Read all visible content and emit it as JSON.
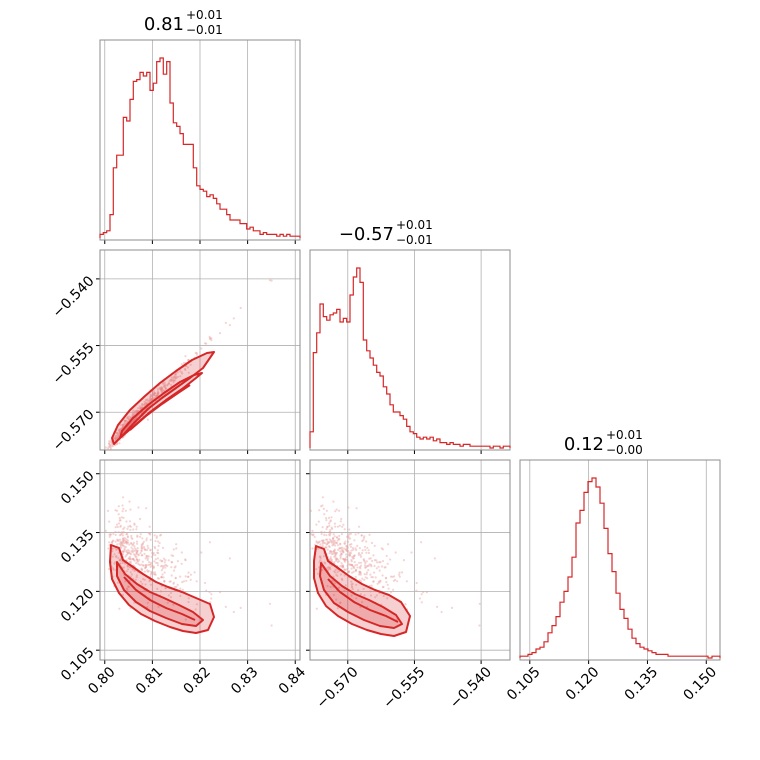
{
  "chart_data": {
    "type": "corner",
    "color": "#d62728",
    "params": [
      {
        "median": 0.81,
        "plus": 0.01,
        "minus": 0.01,
        "range": [
          0.799,
          0.841
        ],
        "ticks": [
          "0.80",
          "0.81",
          "0.82",
          "0.83",
          "0.84"
        ],
        "tick_values": [
          0.8,
          0.81,
          0.82,
          0.83,
          0.84
        ],
        "title_main": "0.81",
        "title_sup": "+0.01",
        "title_sub": "−0.01"
      },
      {
        "median": -0.57,
        "plus": 0.01,
        "minus": 0.01,
        "range": [
          -0.5785,
          -0.5335
        ],
        "ticks": [
          "−0.570",
          "−0.555",
          "−0.540"
        ],
        "tick_values": [
          -0.57,
          -0.555,
          -0.54
        ],
        "title_main": "−0.57",
        "title_sup": "+0.01",
        "title_sub": "−0.01"
      },
      {
        "median": 0.12,
        "plus": 0.01,
        "minus": 0.0,
        "range": [
          0.1025,
          0.1535
        ],
        "ticks": [
          "0.105",
          "0.120",
          "0.135",
          "0.150"
        ],
        "tick_values": [
          0.105,
          0.12,
          0.135,
          0.15
        ],
        "title_main": "0.12",
        "title_sup": "+0.01",
        "title_sub": "−0.00"
      }
    ],
    "hist1": [
      0.02,
      0.03,
      0.04,
      0.13,
      0.39,
      0.46,
      0.46,
      0.67,
      0.65,
      0.77,
      0.87,
      0.88,
      0.92,
      0.9,
      0.92,
      0.82,
      0.86,
      0.98,
      1.0,
      0.91,
      0.98,
      0.75,
      0.64,
      0.62,
      0.58,
      0.52,
      0.52,
      0.52,
      0.39,
      0.29,
      0.27,
      0.26,
      0.23,
      0.24,
      0.22,
      0.19,
      0.16,
      0.16,
      0.13,
      0.1,
      0.1,
      0.1,
      0.08,
      0.08,
      0.05,
      0.06,
      0.04,
      0.04,
      0.02,
      0.03,
      0.02,
      0.02,
      0.02,
      0.01,
      0.02,
      0.01,
      0.02,
      0.01,
      0.01,
      0.01
    ],
    "hist2": [
      0.09,
      0.53,
      0.64,
      0.8,
      0.73,
      0.71,
      0.74,
      0.75,
      0.77,
      0.7,
      0.72,
      0.7,
      0.85,
      0.95,
      1.0,
      0.92,
      0.6,
      0.54,
      0.5,
      0.46,
      0.42,
      0.4,
      0.34,
      0.3,
      0.24,
      0.2,
      0.2,
      0.18,
      0.16,
      0.12,
      0.09,
      0.08,
      0.06,
      0.05,
      0.06,
      0.05,
      0.06,
      0.04,
      0.05,
      0.03,
      0.03,
      0.02,
      0.03,
      0.02,
      0.02,
      0.01,
      0.02,
      0.02,
      0.01,
      0.01,
      0.01,
      0.01,
      0.01,
      0.01,
      0.0,
      0.01,
      0.01,
      0.0,
      0.01,
      0.01
    ],
    "hist3": [
      0.01,
      0.01,
      0.02,
      0.03,
      0.05,
      0.06,
      0.09,
      0.14,
      0.18,
      0.23,
      0.31,
      0.37,
      0.45,
      0.56,
      0.75,
      0.82,
      0.92,
      0.98,
      1.0,
      0.95,
      0.86,
      0.72,
      0.58,
      0.48,
      0.36,
      0.27,
      0.22,
      0.16,
      0.11,
      0.08,
      0.06,
      0.05,
      0.04,
      0.03,
      0.02,
      0.02,
      0.02,
      0.01,
      0.01,
      0.01,
      0.01,
      0.01,
      0.01,
      0.01,
      0.01,
      0.01,
      0.01,
      0.0,
      0.01,
      0.01
    ]
  }
}
